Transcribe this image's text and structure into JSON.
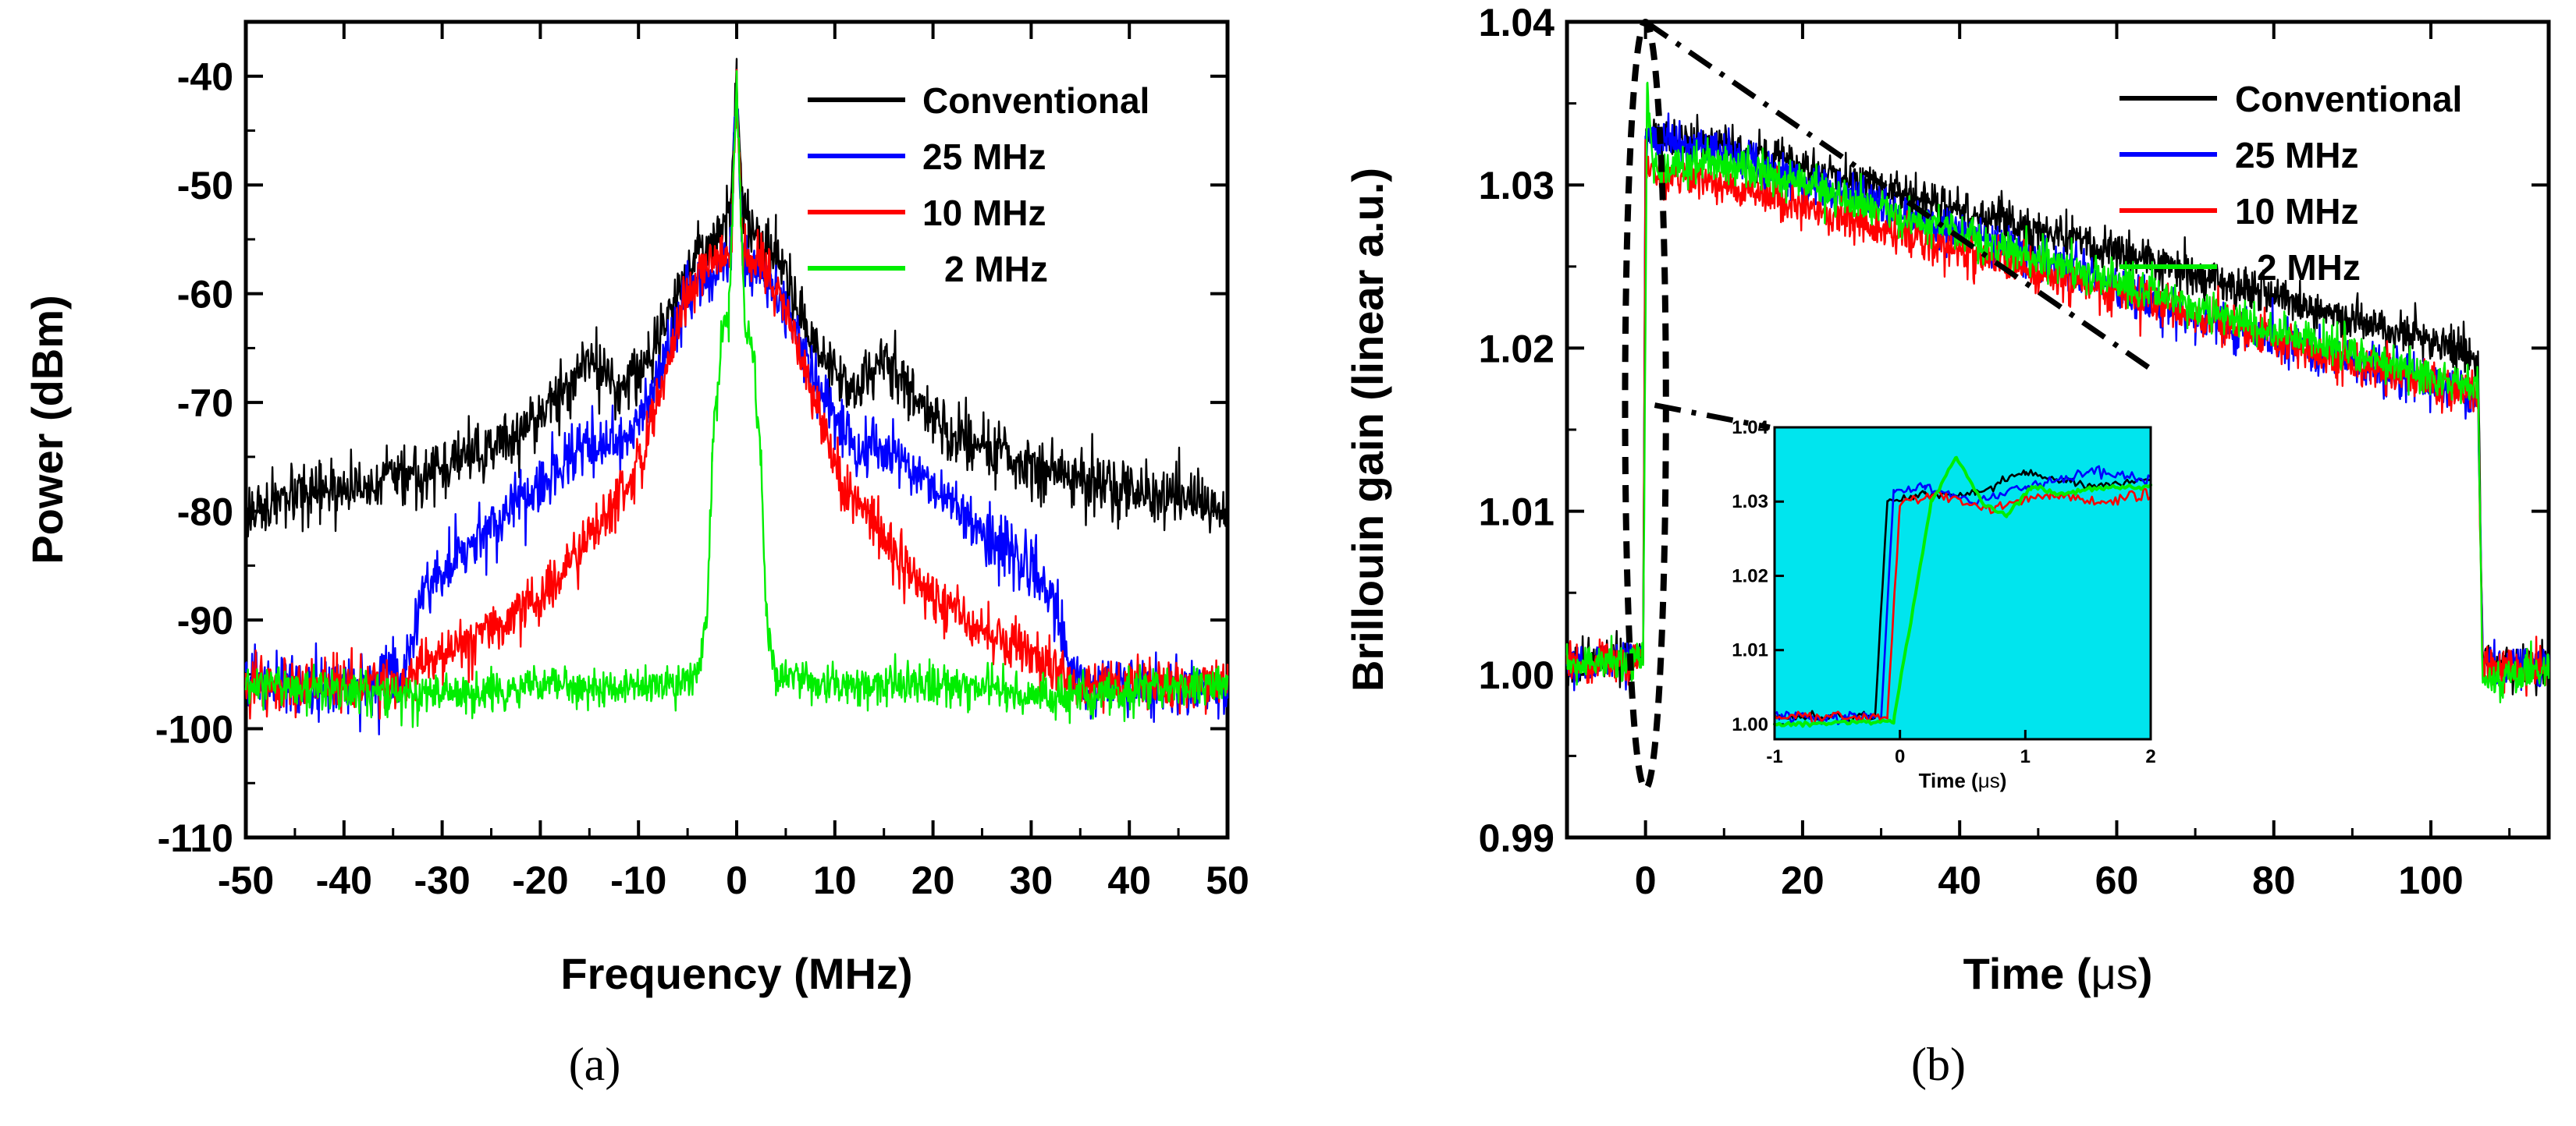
{
  "chart_data": [
    {
      "id": "a",
      "type": "line",
      "caption": "(a)",
      "xlabel": "Frequency (MHz)",
      "ylabel": "Power (dBm)",
      "xlim": [
        -50,
        50
      ],
      "ylim": [
        -110,
        -35
      ],
      "xticks": [
        -50,
        -40,
        -30,
        -20,
        -10,
        0,
        10,
        20,
        30,
        40,
        50
      ],
      "yticks": [
        -40,
        -50,
        -60,
        -70,
        -80,
        -90,
        -100,
        -110
      ],
      "legend_position": "top-right",
      "series": [
        {
          "name": "Conventional",
          "color": "#000000",
          "noise": 2.2,
          "points": [
            [
              -50,
              -80
            ],
            [
              -40,
              -78
            ],
            [
              -30,
              -76
            ],
            [
              -22,
              -73
            ],
            [
              -18,
              -69
            ],
            [
              -15,
              -66
            ],
            [
              -12,
              -69
            ],
            [
              -9,
              -66
            ],
            [
              -6,
              -60
            ],
            [
              -4,
              -56
            ],
            [
              -2,
              -55
            ],
            [
              -0.6,
              -52
            ],
            [
              0,
              -40
            ],
            [
              0.6,
              -52
            ],
            [
              2,
              -55
            ],
            [
              4,
              -56
            ],
            [
              6,
              -61
            ],
            [
              9,
              -66
            ],
            [
              12,
              -69
            ],
            [
              15,
              -66
            ],
            [
              18,
              -69
            ],
            [
              22,
              -73
            ],
            [
              30,
              -76
            ],
            [
              40,
              -78
            ],
            [
              50,
              -80
            ]
          ]
        },
        {
          "name": "25 MHz",
          "color": "#0000ff",
          "noise": 2.2,
          "points": [
            [
              -50,
              -96
            ],
            [
              -36,
              -96
            ],
            [
              -34,
              -95
            ],
            [
              -32,
              -87
            ],
            [
              -28,
              -84
            ],
            [
              -22,
              -79
            ],
            [
              -15,
              -74
            ],
            [
              -12,
              -74
            ],
            [
              -8,
              -68
            ],
            [
              -5,
              -60
            ],
            [
              -2,
              -58
            ],
            [
              -0.6,
              -56
            ],
            [
              0,
              -40
            ],
            [
              0.6,
              -56
            ],
            [
              2,
              -58
            ],
            [
              5,
              -61
            ],
            [
              8,
              -68
            ],
            [
              12,
              -74
            ],
            [
              15,
              -74
            ],
            [
              22,
              -79
            ],
            [
              28,
              -84
            ],
            [
              32,
              -87
            ],
            [
              34,
              -95
            ],
            [
              36,
              -96
            ],
            [
              50,
              -96
            ]
          ]
        },
        {
          "name": "10 MHz",
          "color": "#ff0000",
          "noise": 2.0,
          "points": [
            [
              -50,
              -96
            ],
            [
              -34,
              -96
            ],
            [
              -32,
              -94
            ],
            [
              -25,
              -91
            ],
            [
              -20,
              -88
            ],
            [
              -17,
              -85
            ],
            [
              -14,
              -81
            ],
            [
              -11,
              -78
            ],
            [
              -8,
              -70
            ],
            [
              -5,
              -60
            ],
            [
              -2,
              -57
            ],
            [
              -0.6,
              -56
            ],
            [
              0,
              -40
            ],
            [
              0.6,
              -56
            ],
            [
              2,
              -57
            ],
            [
              5,
              -61
            ],
            [
              8,
              -70
            ],
            [
              11,
              -78
            ],
            [
              14,
              -81
            ],
            [
              17,
              -85
            ],
            [
              20,
              -88
            ],
            [
              25,
              -91
            ],
            [
              32,
              -94
            ],
            [
              34,
              -96
            ],
            [
              50,
              -96
            ]
          ]
        },
        {
          "name": "2 MHz",
          "color": "#00ee00",
          "noise": 1.6,
          "points": [
            [
              -50,
              -96
            ],
            [
              -32,
              -97
            ],
            [
              -20,
              -96
            ],
            [
              -8,
              -96
            ],
            [
              -4,
              -95
            ],
            [
              -3,
              -90
            ],
            [
              -2.5,
              -75
            ],
            [
              -1.5,
              -64
            ],
            [
              -0.8,
              -63
            ],
            [
              0,
              -40
            ],
            [
              0.8,
              -63
            ],
            [
              1.5,
              -64
            ],
            [
              2.5,
              -75
            ],
            [
              3,
              -90
            ],
            [
              4,
              -95
            ],
            [
              8,
              -96
            ],
            [
              20,
              -96
            ],
            [
              32,
              -97
            ],
            [
              50,
              -96
            ]
          ]
        }
      ]
    },
    {
      "id": "b",
      "type": "line",
      "caption": "(b)",
      "xlabel_prefix": "Time (",
      "xlabel_unit": "μs",
      "xlabel_suffix": ")",
      "ylabel": "Brillouin gain (linear a.u.)",
      "xlim": [
        -10,
        115
      ],
      "ylim": [
        0.99,
        1.04
      ],
      "xticks": [
        0,
        20,
        40,
        60,
        80,
        100
      ],
      "yticks": [
        1.04,
        1.03,
        1.02,
        1.01,
        1.0,
        0.99
      ],
      "ytick_labels": [
        "1.04",
        "1.03",
        "1.02",
        "1.01",
        "1.00",
        "0.99"
      ],
      "legend_position": "top-right",
      "series": [
        {
          "name": "Conventional",
          "color": "#000000",
          "noise": 0.0011,
          "points": [
            [
              -10,
              1.0005
            ],
            [
              -0.3,
              1.001
            ],
            [
              0,
              1.033
            ],
            [
              10,
              1.0325
            ],
            [
              40,
              1.0285
            ],
            [
              70,
              1.0245
            ],
            [
              106,
              1.0195
            ],
            [
              106.6,
              1.0005
            ],
            [
              115,
              1.0005
            ]
          ]
        },
        {
          "name": "25 MHz",
          "color": "#0000ff",
          "noise": 0.0011,
          "points": [
            [
              -10,
              1.0005
            ],
            [
              -0.3,
              1.001
            ],
            [
              0,
              1.033
            ],
            [
              10,
              1.032
            ],
            [
              40,
              1.027
            ],
            [
              70,
              1.022
            ],
            [
              106,
              1.017
            ],
            [
              106.6,
              1.0005
            ],
            [
              115,
              1.0005
            ]
          ]
        },
        {
          "name": "10 MHz",
          "color": "#ff0000",
          "noise": 0.0011,
          "points": [
            [
              -10,
              1.0005
            ],
            [
              -0.3,
              1.001
            ],
            [
              0,
              1.031
            ],
            [
              10,
              1.03
            ],
            [
              40,
              1.026
            ],
            [
              70,
              1.022
            ],
            [
              106,
              1.017
            ],
            [
              106.6,
              1.0005
            ],
            [
              115,
              1.0005
            ]
          ]
        },
        {
          "name": "2 MHz",
          "color": "#00ee00",
          "noise": 0.001,
          "points": [
            [
              -10,
              1.0005
            ],
            [
              -0.3,
              1.001
            ],
            [
              0.2,
              1.036
            ],
            [
              1,
              1.031
            ],
            [
              10,
              1.0315
            ],
            [
              40,
              1.027
            ],
            [
              70,
              1.0225
            ],
            [
              106,
              1.0175
            ],
            [
              106.6,
              0.9995
            ],
            [
              115,
              1.0005
            ]
          ]
        }
      ],
      "annotations": {
        "ellipse": {
          "center": [
            0,
            1.0165
          ],
          "radius_x": 2.6,
          "radius_y": 0.0235
        },
        "dash_dot_line": [
          [
            0,
            1.04
          ],
          [
            65,
            1.0185
          ]
        ]
      },
      "inset": {
        "background": "#00e5ee",
        "xlabel_prefix": "Time (",
        "xlabel_unit": "μs",
        "xlabel_suffix": ")",
        "xlim": [
          -1,
          2
        ],
        "ylim": [
          0.998,
          1.04
        ],
        "xticks": [
          -1,
          0,
          1,
          2
        ],
        "yticks": [
          1.04,
          1.03,
          1.02,
          1.01,
          1.0
        ],
        "ytick_labels": [
          "1.04",
          "1.03",
          "1.02",
          "1.01",
          "1.00"
        ],
        "series": [
          {
            "name": "Conventional",
            "color": "#000000",
            "noise": 0.0005,
            "points": [
              [
                -1,
                1.001
              ],
              [
                -0.2,
                1.001
              ],
              [
                -0.1,
                1.03
              ],
              [
                0.2,
                1.031
              ],
              [
                0.6,
                1.031
              ],
              [
                1.0,
                1.034
              ],
              [
                1.5,
                1.032
              ],
              [
                2,
                1.033
              ]
            ]
          },
          {
            "name": "25 MHz",
            "color": "#0000ff",
            "noise": 0.0006,
            "points": [
              [
                -1,
                1.001
              ],
              [
                -0.15,
                1.001
              ],
              [
                -0.05,
                1.031
              ],
              [
                0.2,
                1.032
              ],
              [
                0.6,
                1.03
              ],
              [
                1.0,
                1.032
              ],
              [
                1.5,
                1.034
              ],
              [
                2,
                1.033
              ]
            ]
          },
          {
            "name": "10 MHz",
            "color": "#ff0000",
            "noise": 0.0006,
            "points": [
              [
                -1,
                1.001
              ],
              [
                -0.1,
                1.001
              ],
              [
                0.0,
                1.03
              ],
              [
                0.3,
                1.031
              ],
              [
                0.7,
                1.029
              ],
              [
                1.2,
                1.031
              ],
              [
                1.6,
                1.03
              ],
              [
                2,
                1.031
              ]
            ]
          },
          {
            "name": "2 MHz",
            "color": "#00ee00",
            "noise": 0.0003,
            "points": [
              [
                -1,
                1.0
              ],
              [
                -0.05,
                1.0005
              ],
              [
                0.25,
                1.03
              ],
              [
                0.45,
                1.036
              ],
              [
                0.65,
                1.03
              ],
              [
                0.85,
                1.028
              ],
              [
                1.05,
                1.032
              ],
              [
                1.3,
                1.031
              ],
              [
                1.6,
                1.032
              ],
              [
                2,
                1.032
              ]
            ]
          }
        ]
      }
    }
  ]
}
